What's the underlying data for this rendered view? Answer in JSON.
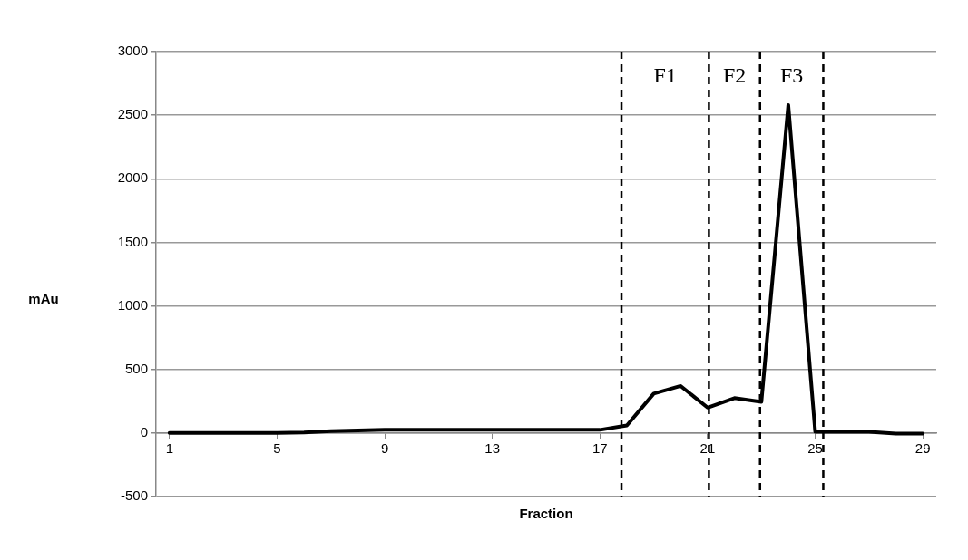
{
  "chart_data": {
    "type": "line",
    "xlabel": "Fraction",
    "ylabel": "mAu",
    "x": [
      1,
      2,
      3,
      4,
      5,
      6,
      7,
      8,
      9,
      10,
      11,
      12,
      13,
      14,
      15,
      16,
      17,
      18,
      19,
      20,
      21,
      22,
      23,
      24,
      25,
      26,
      27,
      28,
      29
    ],
    "series": [
      {
        "color": "#000000",
        "values": [
          0,
          0,
          0,
          0,
          0,
          5,
          15,
          20,
          25,
          25,
          25,
          25,
          25,
          25,
          25,
          25,
          25,
          60,
          310,
          370,
          200,
          275,
          245,
          2580,
          10,
          10,
          10,
          -5,
          -5
        ]
      }
    ],
    "xlim": [
      0.5,
      29.5
    ],
    "xticks": [
      1,
      5,
      9,
      13,
      17,
      21,
      25,
      29
    ],
    "ylim": [
      -500,
      3000
    ],
    "yticks": [
      -500,
      0,
      500,
      1000,
      1500,
      2000,
      2500,
      3000
    ],
    "grid": "y",
    "legend": false,
    "marker": "none",
    "line_style": "solid",
    "ref_lines": [
      {
        "axis": "x",
        "value": 17.8,
        "line_style": "dashed",
        "color": "#000000"
      },
      {
        "axis": "x",
        "value": 21.05,
        "line_style": "dashed",
        "color": "#000000"
      },
      {
        "axis": "x",
        "value": 22.95,
        "line_style": "dashed",
        "color": "#000000"
      },
      {
        "axis": "x",
        "value": 25.3,
        "line_style": "dashed",
        "color": "#000000"
      }
    ],
    "annotations": [
      "F1",
      "F2",
      "F3"
    ]
  }
}
